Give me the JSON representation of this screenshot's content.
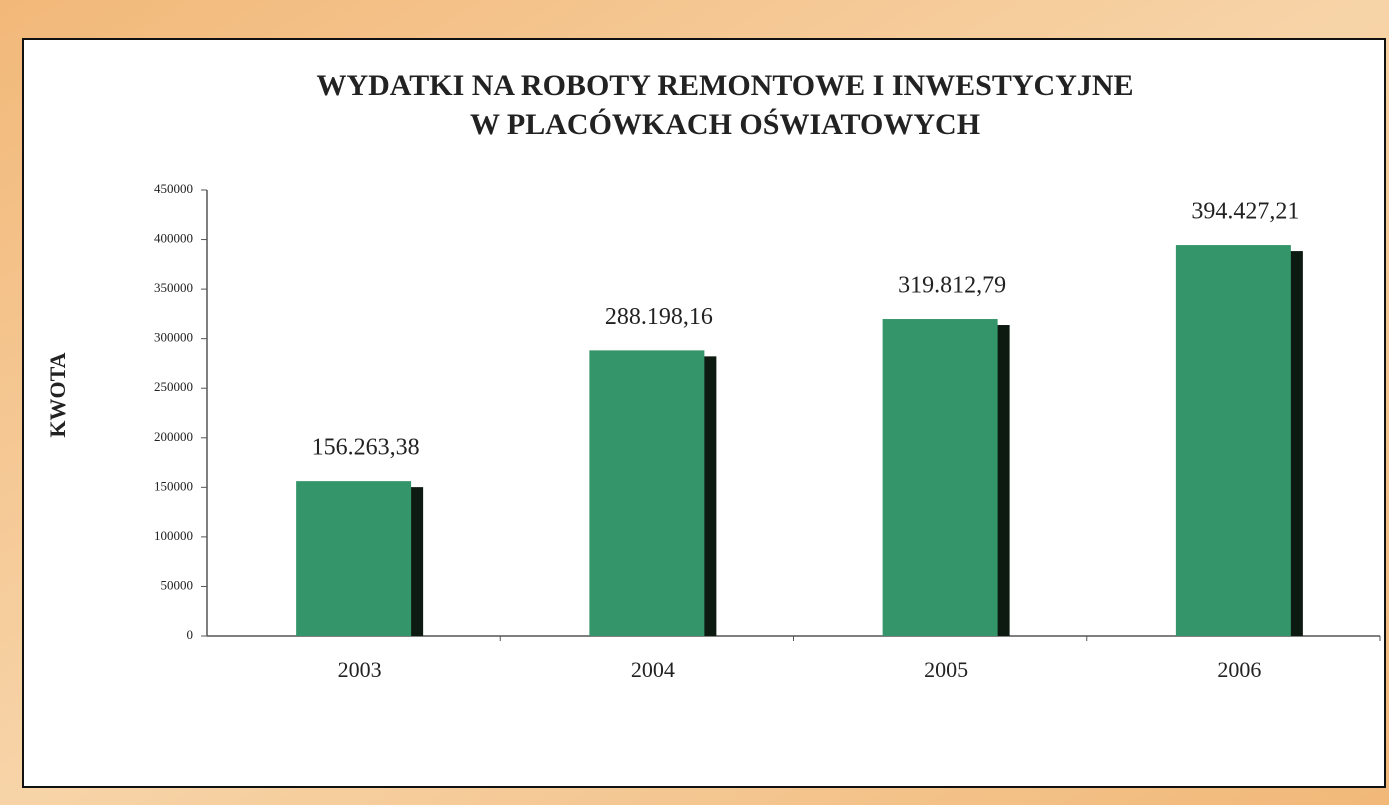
{
  "chart_data": {
    "type": "bar",
    "title": [
      "WYDATKI NA ROBOTY REMONTOWE I INWESTYCYJNE",
      "W PLACÓWKACH OŚWIATOWYCH"
    ],
    "y_label": "KWOTA",
    "categories": [
      "2003",
      "2004",
      "2005",
      "2006"
    ],
    "values": [
      156263.38,
      288198.16,
      319812.79,
      394427.21
    ],
    "value_labels": [
      "156.263,38",
      "288.198,16",
      "319.812,79",
      "394.427,21"
    ],
    "color": "#35956a",
    "ylim": [
      0,
      450000
    ],
    "yticks": [
      0,
      50000,
      100000,
      150000,
      200000,
      250000,
      300000,
      350000,
      400000,
      450000
    ]
  }
}
